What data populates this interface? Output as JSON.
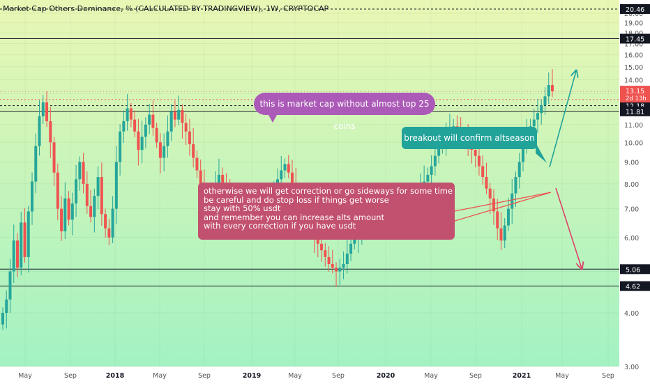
{
  "header": {
    "title": "Market Cap Others Dominance, % (CALCULATED BY TRADINGVIEW), 1W, CRYPTOCAP"
  },
  "annotations": {
    "purple_note": "this is market cap without almost top 25 coins",
    "teal_note": "breakout will confirm altseason",
    "red_note_lines": [
      "otherwise we will get correction or go sideways for some time",
      "be careful and do stop loss if things get worse",
      "stay with 50% usdt",
      "and remember you can increase alts amount",
      "with every correction if you have usdt"
    ]
  },
  "colors": {
    "background_top": "#e9f7b4",
    "background_bottom": "#a3f2c2",
    "up_candle": "#26a69a",
    "down_candle": "#ef5350",
    "purple": "#ab5ab7",
    "teal": "#22a39a",
    "red_callout": "#c2506f",
    "axis_text": "#555555",
    "price_label_bg": "#131722",
    "current_price_bg": "#ef5350"
  },
  "chart_data": {
    "type": "candlestick",
    "title": "Market Cap Others Dominance, % (CALCULATED BY TRADINGVIEW), 1W, CRYPTOCAP",
    "y_scale": "log",
    "ylim": [
      3.0,
      21.0
    ],
    "y_ticks": [
      "3.00",
      "4.00",
      "5.00",
      "6.00",
      "7.00",
      "8.00",
      "9.00",
      "10.00",
      "11.00",
      "12.00",
      "13.00",
      "14.00",
      "15.00",
      "16.00",
      "17.00",
      "18.00",
      "19.00",
      "20.00"
    ],
    "x_ticks": [
      "May",
      "Sep",
      "2018",
      "May",
      "Sep",
      "2019",
      "May",
      "Sep",
      "2020",
      "May",
      "Sep",
      "2021",
      "May",
      "Sep"
    ],
    "horizontal_levels": [
      {
        "value": 20.46,
        "label": "20.46",
        "style": "dashed"
      },
      {
        "value": 17.45,
        "label": "17.45",
        "style": "solid"
      },
      {
        "value": 12.58,
        "label": "12.58",
        "style": "dashed-red"
      },
      {
        "value": 12.18,
        "label": "12.18",
        "style": "dashed"
      },
      {
        "value": 11.81,
        "label": "11.81",
        "style": "solid"
      },
      {
        "value": 5.06,
        "label": "5.06",
        "style": "solid"
      },
      {
        "value": 4.62,
        "label": "4.62",
        "style": "solid"
      }
    ],
    "current_price": {
      "value": 13.15,
      "label": "13.15",
      "countdown": "2d 13h"
    },
    "weekly_closes": [
      4.0,
      4.3,
      5.0,
      5.9,
      5.1,
      6.5,
      5.4,
      6.9,
      8.1,
      9.8,
      11.5,
      12.4,
      11.2,
      10.0,
      8.5,
      7.0,
      6.2,
      7.4,
      6.6,
      7.2,
      8.2,
      9.0,
      8.0,
      7.1,
      6.7,
      7.5,
      8.3,
      6.8,
      6.3,
      6.0,
      7.0,
      9.0,
      10.6,
      11.2,
      12.0,
      11.3,
      10.6,
      9.6,
      10.3,
      11.0,
      11.6,
      10.8,
      10.0,
      9.2,
      9.8,
      10.6,
      11.8,
      11.3,
      11.9,
      11.1,
      10.6,
      9.9,
      9.2,
      8.6,
      8.0,
      7.6,
      7.4,
      7.6,
      8.0,
      8.4,
      8.0,
      7.6,
      7.4,
      7.3,
      7.5,
      7.3,
      7.2,
      7.0,
      6.7,
      6.5,
      6.4,
      6.6,
      6.9,
      7.3,
      7.8,
      8.2,
      8.6,
      8.9,
      8.5,
      8.0,
      7.5,
      7.0,
      6.6,
      6.4,
      6.2,
      6.0,
      5.8,
      5.6,
      5.4,
      5.2,
      5.1,
      5.0,
      5.1,
      5.2,
      5.5,
      5.8,
      6.0,
      6.2,
      6.3,
      6.4,
      6.3,
      6.3,
      6.5,
      6.8,
      7.1,
      7.5,
      7.3,
      7.1,
      6.8,
      7.0,
      7.2,
      7.4,
      7.5,
      7.6,
      7.9,
      8.1,
      8.4,
      8.8,
      9.3,
      9.7,
      10.1,
      10.4,
      10.7,
      10.9,
      10.6,
      10.3,
      10.5,
      10.1,
      9.6,
      9.3,
      8.8,
      8.3,
      7.8,
      7.4,
      6.9,
      6.3,
      5.9,
      6.4,
      7.0,
      7.6,
      8.3,
      9.0,
      9.8,
      10.4,
      10.9,
      11.3,
      11.7,
      12.2,
      12.8,
      13.6,
      13.15
    ]
  }
}
